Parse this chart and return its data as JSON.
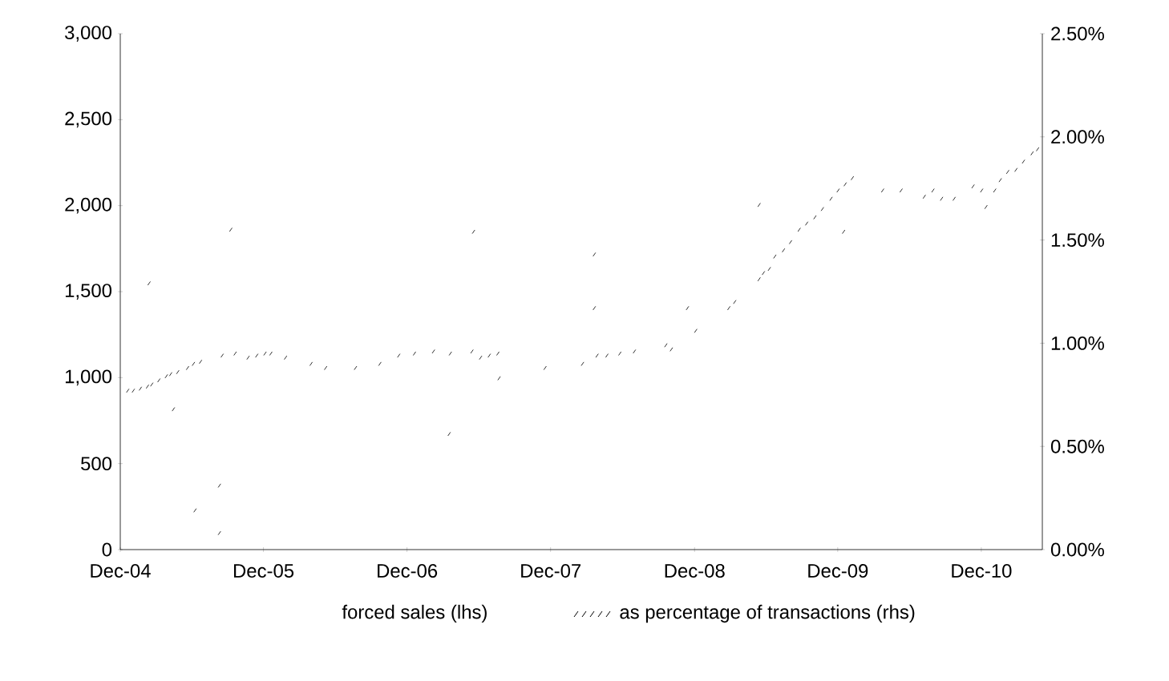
{
  "chart_data": {
    "type": "scatter",
    "legend": "bottom",
    "xlim": [
      "2004-12-01",
      "2011-05-05"
    ],
    "xticks": [
      {
        "value": "2004-12-01",
        "label": "Dec-04"
      },
      {
        "value": "2005-12-01",
        "label": "Dec-05"
      },
      {
        "value": "2006-12-01",
        "label": "Dec-06"
      },
      {
        "value": "2007-12-01",
        "label": "Dec-07"
      },
      {
        "value": "2008-12-01",
        "label": "Dec-08"
      },
      {
        "value": "2009-12-01",
        "label": "Dec-09"
      },
      {
        "value": "2010-12-01",
        "label": "Dec-10"
      }
    ],
    "ylim": [
      0,
      3000
    ],
    "yticks": [
      {
        "value": 0,
        "label": "0"
      },
      {
        "value": 500,
        "label": "500"
      },
      {
        "value": 1000,
        "label": "1,000"
      },
      {
        "value": 1500,
        "label": "1,500"
      },
      {
        "value": 2000,
        "label": "2,000"
      },
      {
        "value": 2500,
        "label": "2,500"
      },
      {
        "value": 3000,
        "label": "3,000"
      }
    ],
    "y2lim": [
      0,
      2.5
    ],
    "y2ticks": [
      {
        "value": 0,
        "label": "0.00%"
      },
      {
        "value": 0.5,
        "label": "0.50%"
      },
      {
        "value": 1,
        "label": "1.00%"
      },
      {
        "value": 1.5,
        "label": "1.50%"
      },
      {
        "value": 2,
        "label": "2.00%"
      },
      {
        "value": 2.5,
        "label": "2.50%"
      }
    ],
    "series": [
      {
        "name": "forced sales (lhs)",
        "color": "#000000"
      },
      {
        "name": "as percentage of transactions (rhs)",
        "color": "#000000",
        "axis": "y2",
        "x": [
          "2004-12-20",
          "2005-01-04",
          "2005-01-22",
          "2005-02-09",
          "2005-02-13",
          "2005-02-20",
          "2005-03-10",
          "2005-03-29",
          "2005-04-09",
          "2005-04-16",
          "2005-04-27",
          "2005-05-22",
          "2005-06-06",
          "2005-06-10",
          "2005-06-24",
          "2005-08-11",
          "2005-08-11",
          "2005-08-18",
          "2005-09-09",
          "2005-09-20",
          "2005-10-23",
          "2005-11-14",
          "2005-12-05",
          "2005-12-20",
          "2006-01-26",
          "2006-04-01",
          "2006-05-08",
          "2006-07-23",
          "2006-09-23",
          "2006-11-10",
          "2006-12-20",
          "2007-02-06",
          "2007-03-18",
          "2007-03-21",
          "2007-05-15",
          "2007-05-19",
          "2007-06-06",
          "2007-06-28",
          "2007-07-20",
          "2007-07-23",
          "2007-11-17",
          "2008-02-20",
          "2008-03-21",
          "2008-03-21",
          "2008-03-28",
          "2008-04-22",
          "2008-05-25",
          "2008-07-01",
          "2008-09-19",
          "2008-10-03",
          "2008-11-13",
          "2008-12-04",
          "2009-02-27",
          "2009-03-14",
          "2009-05-15",
          "2009-05-15",
          "2009-05-26",
          "2009-06-10",
          "2009-06-24",
          "2009-07-16",
          "2009-08-03",
          "2009-08-25",
          "2009-09-13",
          "2009-10-04",
          "2009-10-23",
          "2009-11-14",
          "2009-12-02",
          "2009-12-16",
          "2009-12-20",
          "2010-01-07",
          "2010-03-25",
          "2010-05-11",
          "2010-07-09",
          "2010-07-31",
          "2010-08-22",
          "2010-09-23",
          "2010-11-10",
          "2010-12-02",
          "2010-12-13",
          "2011-01-04",
          "2011-01-18",
          "2011-02-06",
          "2011-02-27",
          "2011-03-18",
          "2011-04-09",
          "2011-04-23"
        ],
        "values": [
          0.77,
          0.77,
          0.78,
          0.79,
          1.29,
          0.8,
          0.82,
          0.84,
          0.85,
          0.68,
          0.86,
          0.88,
          0.9,
          0.19,
          0.91,
          0.31,
          0.08,
          0.94,
          1.55,
          0.95,
          0.93,
          0.94,
          0.95,
          0.95,
          0.93,
          0.9,
          0.88,
          0.88,
          0.9,
          0.94,
          0.95,
          0.96,
          0.56,
          0.95,
          0.96,
          1.54,
          0.93,
          0.94,
          0.95,
          0.83,
          0.88,
          0.9,
          1.43,
          1.17,
          0.94,
          0.94,
          0.95,
          0.96,
          0.99,
          0.97,
          1.17,
          1.06,
          1.17,
          1.2,
          1.67,
          1.31,
          1.34,
          1.36,
          1.42,
          1.45,
          1.49,
          1.55,
          1.58,
          1.61,
          1.65,
          1.7,
          1.74,
          1.54,
          1.77,
          1.8,
          1.74,
          1.74,
          1.71,
          1.74,
          1.7,
          1.7,
          1.76,
          1.74,
          1.66,
          1.74,
          1.79,
          1.83,
          1.84,
          1.88,
          1.92,
          1.94
        ]
      }
    ]
  }
}
